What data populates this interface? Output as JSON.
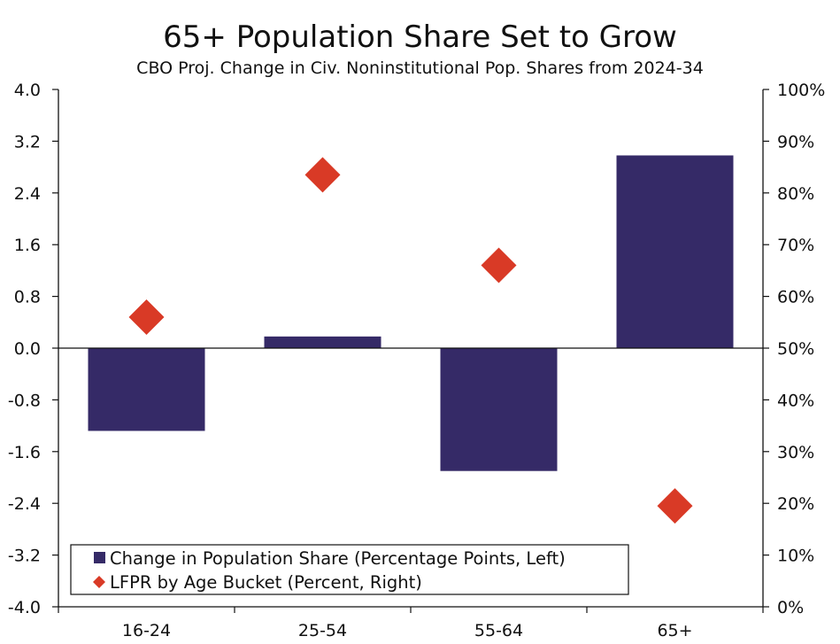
{
  "chart_data": {
    "type": "bar",
    "title": "65+ Population Share Set to Grow",
    "subtitle": "CBO Proj. Change in Civ. Noninstitutional Pop. Shares from 2024-34",
    "categories": [
      "16-24",
      "25-54",
      "55-64",
      "65+"
    ],
    "series": [
      {
        "name": "Change in Population Share (Percentage Points, Left)",
        "type": "bar",
        "axis": "left",
        "color": "#352a67",
        "values": [
          -1.28,
          0.18,
          -1.9,
          2.98
        ]
      },
      {
        "name": "LFPR by Age Bucket (Percent, Right)",
        "type": "scatter",
        "marker": "diamond",
        "axis": "right",
        "color": "#d93a26",
        "values": [
          56,
          83.5,
          66,
          19.5
        ]
      }
    ],
    "y_left": {
      "min": -4.0,
      "max": 4.0,
      "ticks": [
        "4.0",
        "3.2",
        "2.4",
        "1.6",
        "0.8",
        "0.0",
        "-0.8",
        "-1.6",
        "-2.4",
        "-3.2",
        "-4.0"
      ]
    },
    "y_right": {
      "min": 0,
      "max": 100,
      "ticks": [
        "100%",
        "90%",
        "80%",
        "70%",
        "60%",
        "50%",
        "40%",
        "30%",
        "20%",
        "10%",
        "0%"
      ]
    },
    "grid": false,
    "legend_position": "bottom-left"
  }
}
